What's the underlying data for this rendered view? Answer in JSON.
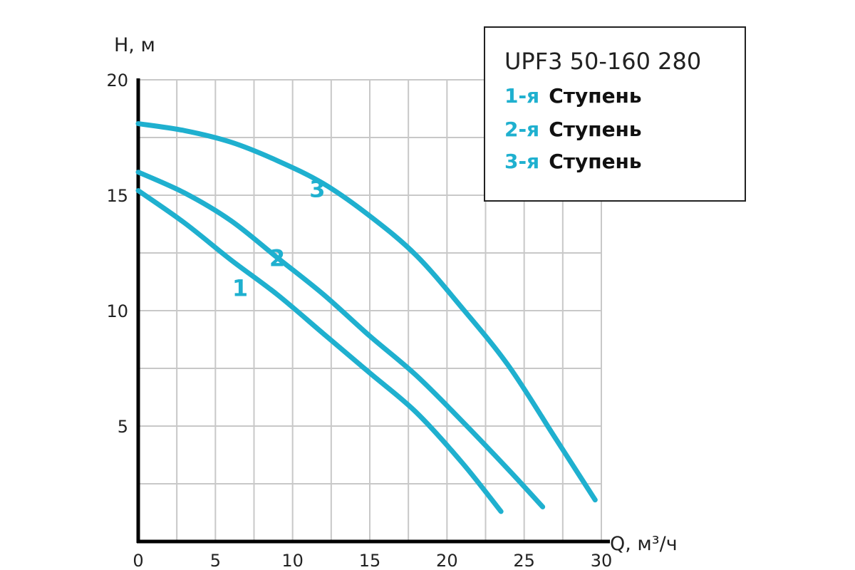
{
  "chart_data": {
    "type": "line",
    "legend": {
      "title": "UPF3 50-160 280",
      "placement": "top-right",
      "entries": [
        {
          "prefix": "1-я",
          "word": "Ступень"
        },
        {
          "prefix": "2-я",
          "word": "Ступень"
        },
        {
          "prefix": "3-я",
          "word": "Ступень"
        }
      ]
    },
    "xlabel": "Q, м³/ч",
    "ylabel": "H, м",
    "xlim": [
      0,
      30
    ],
    "ylim": [
      0,
      20
    ],
    "x_ticks": [
      "0",
      "5",
      "10",
      "15",
      "20",
      "25",
      "30"
    ],
    "y_ticks": [
      "5",
      "10",
      "15",
      "20"
    ],
    "grid": true,
    "colors": {
      "curve": "#1fb0cf",
      "grid": "#c8c8c8",
      "axis": "#000000"
    },
    "series": [
      {
        "label": "1",
        "label_at": [
          6.6,
          11.0
        ],
        "points": [
          [
            0,
            15.2
          ],
          [
            3,
            13.8
          ],
          [
            6,
            12.2
          ],
          [
            9,
            10.7
          ],
          [
            12,
            9.0
          ],
          [
            15,
            7.3
          ],
          [
            18,
            5.6
          ],
          [
            21,
            3.4
          ],
          [
            23.5,
            1.3
          ]
        ]
      },
      {
        "label": "2",
        "label_at": [
          9.0,
          12.3
        ],
        "points": [
          [
            0,
            16.0
          ],
          [
            3,
            15.1
          ],
          [
            6,
            13.9
          ],
          [
            9,
            12.3
          ],
          [
            12,
            10.7
          ],
          [
            15,
            8.9
          ],
          [
            18,
            7.2
          ],
          [
            21,
            5.2
          ],
          [
            24,
            3.1
          ],
          [
            26.2,
            1.5
          ]
        ]
      },
      {
        "label": "3",
        "label_at": [
          11.6,
          15.3
        ],
        "points": [
          [
            0,
            18.1
          ],
          [
            3,
            17.8
          ],
          [
            6,
            17.3
          ],
          [
            9,
            16.5
          ],
          [
            12,
            15.5
          ],
          [
            15,
            14.1
          ],
          [
            18,
            12.4
          ],
          [
            21,
            10.1
          ],
          [
            24,
            7.6
          ],
          [
            27,
            4.5
          ],
          [
            29.6,
            1.8
          ]
        ]
      }
    ]
  }
}
